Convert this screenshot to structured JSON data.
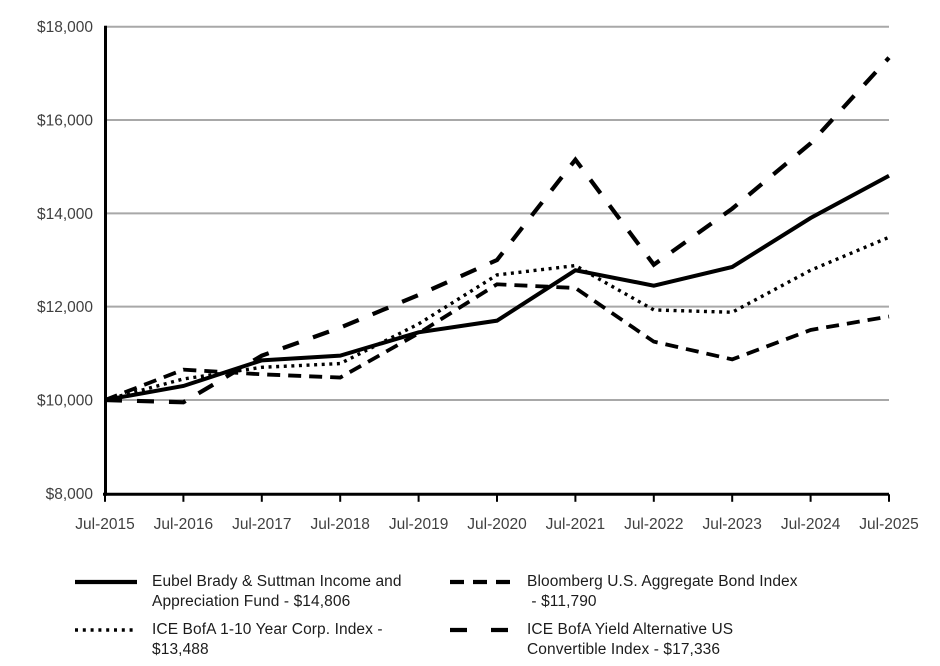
{
  "colors": {
    "background": "#ffffff",
    "series_line": "#000000",
    "grid_line": "#a8a8a8",
    "axis_line": "#000000",
    "tick_label": "#3f3f3f",
    "legend_text": "#1c1c1c"
  },
  "chart_data": {
    "type": "line",
    "title": "",
    "xlabel": "",
    "ylabel": "",
    "ylim": [
      8000,
      18000
    ],
    "grid": "horizontal gridlines on, gray",
    "legend_position": "bottom, two columns",
    "x_labels": [
      "Jul-2015",
      "Jul-2016",
      "Jul-2017",
      "Jul-2018",
      "Jul-2019",
      "Jul-2020",
      "Jul-2021",
      "Jul-2022",
      "Jul-2023",
      "Jul-2024",
      "Jul-2025"
    ],
    "y_ticks": [
      {
        "label": "$8,000",
        "value": 8000
      },
      {
        "label": "$10,000",
        "value": 10000
      },
      {
        "label": "$12,000",
        "value": 12000
      },
      {
        "label": "$14,000",
        "value": 14000
      },
      {
        "label": "$16,000",
        "value": 16000
      },
      {
        "label": "$18,000",
        "value": 18000
      }
    ],
    "series": [
      {
        "name": "Eubel Brady & Suttman Income and Appreciation Fund",
        "final_value_label": "$14,806",
        "style": "solid",
        "values": [
          10000,
          10300,
          10850,
          10950,
          11450,
          11700,
          12780,
          12450,
          12850,
          13900,
          14806
        ]
      },
      {
        "name": "Bloomberg U.S. Aggregate Bond Index",
        "final_value_label": "$11,790",
        "style": "dashed",
        "values": [
          10000,
          10650,
          10550,
          10480,
          11430,
          12480,
          12400,
          11250,
          10870,
          11500,
          11790
        ]
      },
      {
        "name": "ICE BofA 1-10 Year Corp. Index",
        "final_value_label": "$13,488",
        "style": "dotted",
        "values": [
          10000,
          10450,
          10700,
          10780,
          11630,
          12680,
          12880,
          11930,
          11880,
          12780,
          13488
        ]
      },
      {
        "name": "ICE BofA Yield Alternative US Convertible Index",
        "final_value_label": "$17,336",
        "style": "long-dash",
        "values": [
          10000,
          9950,
          10950,
          11550,
          12250,
          13000,
          15150,
          12900,
          14100,
          15500,
          17336
        ]
      }
    ],
    "legend_items": [
      {
        "series_index": 0,
        "style": "solid",
        "lines": [
          "Eubel Brady & Suttman Income and",
          "Appreciation Fund - $14,806"
        ]
      },
      {
        "series_index": 1,
        "style": "dashed",
        "lines": [
          "Bloomberg U.S. Aggregate Bond Index",
          " - $11,790"
        ]
      },
      {
        "series_index": 2,
        "style": "dotted",
        "lines": [
          "ICE BofA 1-10 Year Corp. Index -",
          "$13,488"
        ]
      },
      {
        "series_index": 3,
        "style": "long-dash",
        "lines": [
          "ICE BofA Yield Alternative US",
          "Convertible Index - $17,336"
        ]
      }
    ]
  }
}
